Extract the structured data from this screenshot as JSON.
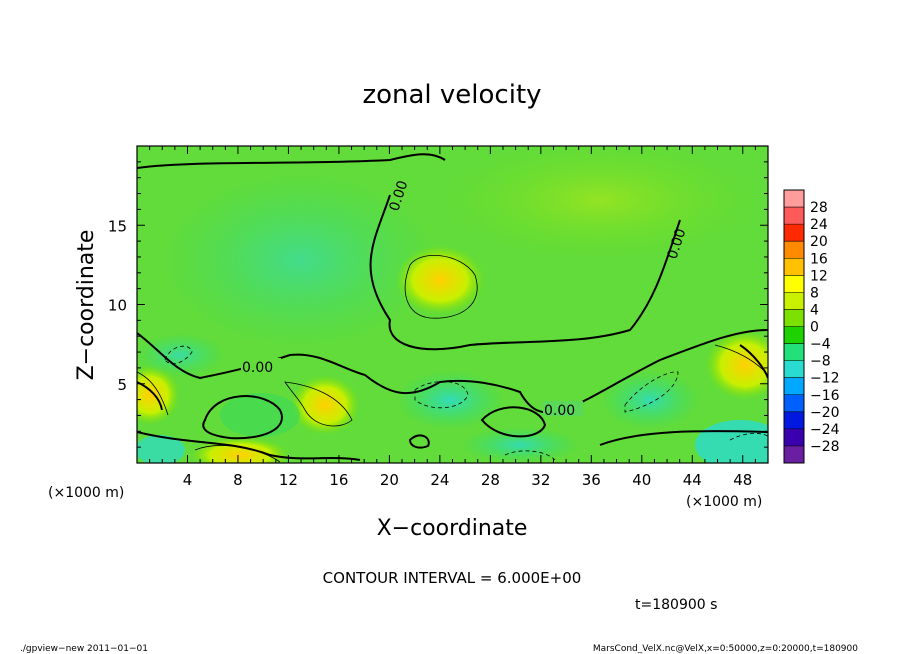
{
  "chart_data": {
    "type": "heatmap",
    "title": "zonal velocity",
    "xlabel": "X−coordinate",
    "ylabel": "Z−coordinate",
    "x_unit": "(×1000 m)",
    "y_unit": "(×1000 m)",
    "xlim": [
      0,
      50
    ],
    "ylim": [
      0,
      20
    ],
    "x_ticks": [
      "4",
      "8",
      "12",
      "16",
      "20",
      "24",
      "28",
      "32",
      "36",
      "40",
      "44",
      "48"
    ],
    "x_tick_values": [
      4,
      8,
      12,
      16,
      20,
      24,
      28,
      32,
      36,
      40,
      44,
      48
    ],
    "y_ticks": [
      "5",
      "10",
      "15"
    ],
    "y_tick_values": [
      5,
      10,
      15
    ],
    "contour_labels": [
      "0.00",
      "0.00",
      "0.00",
      "0.00"
    ],
    "colorbar": {
      "labels": [
        "28",
        "24",
        "20",
        "16",
        "12",
        "8",
        "4",
        "0",
        "−4",
        "−8",
        "−12",
        "−16",
        "−20",
        "−24",
        "−28"
      ],
      "colors": [
        "#ff9c9c",
        "#ff5a5a",
        "#ff2a00",
        "#ff8a00",
        "#ffc000",
        "#ffff00",
        "#c8f000",
        "#7ce000",
        "#1ed200",
        "#22e07a",
        "#2adcd0",
        "#00a8ff",
        "#0060ff",
        "#0018e0",
        "#3a00b0",
        "#6a1ea0"
      ]
    },
    "contour_interval": "CONTOUR INTERVAL = 6.000E+00",
    "time": "t=180900 s"
  },
  "footer": {
    "left": "./gpview−new   2011−01−01",
    "right": "MarsCond_VelX.nc@VelX,x=0:50000,z=0:20000,t=180900"
  }
}
